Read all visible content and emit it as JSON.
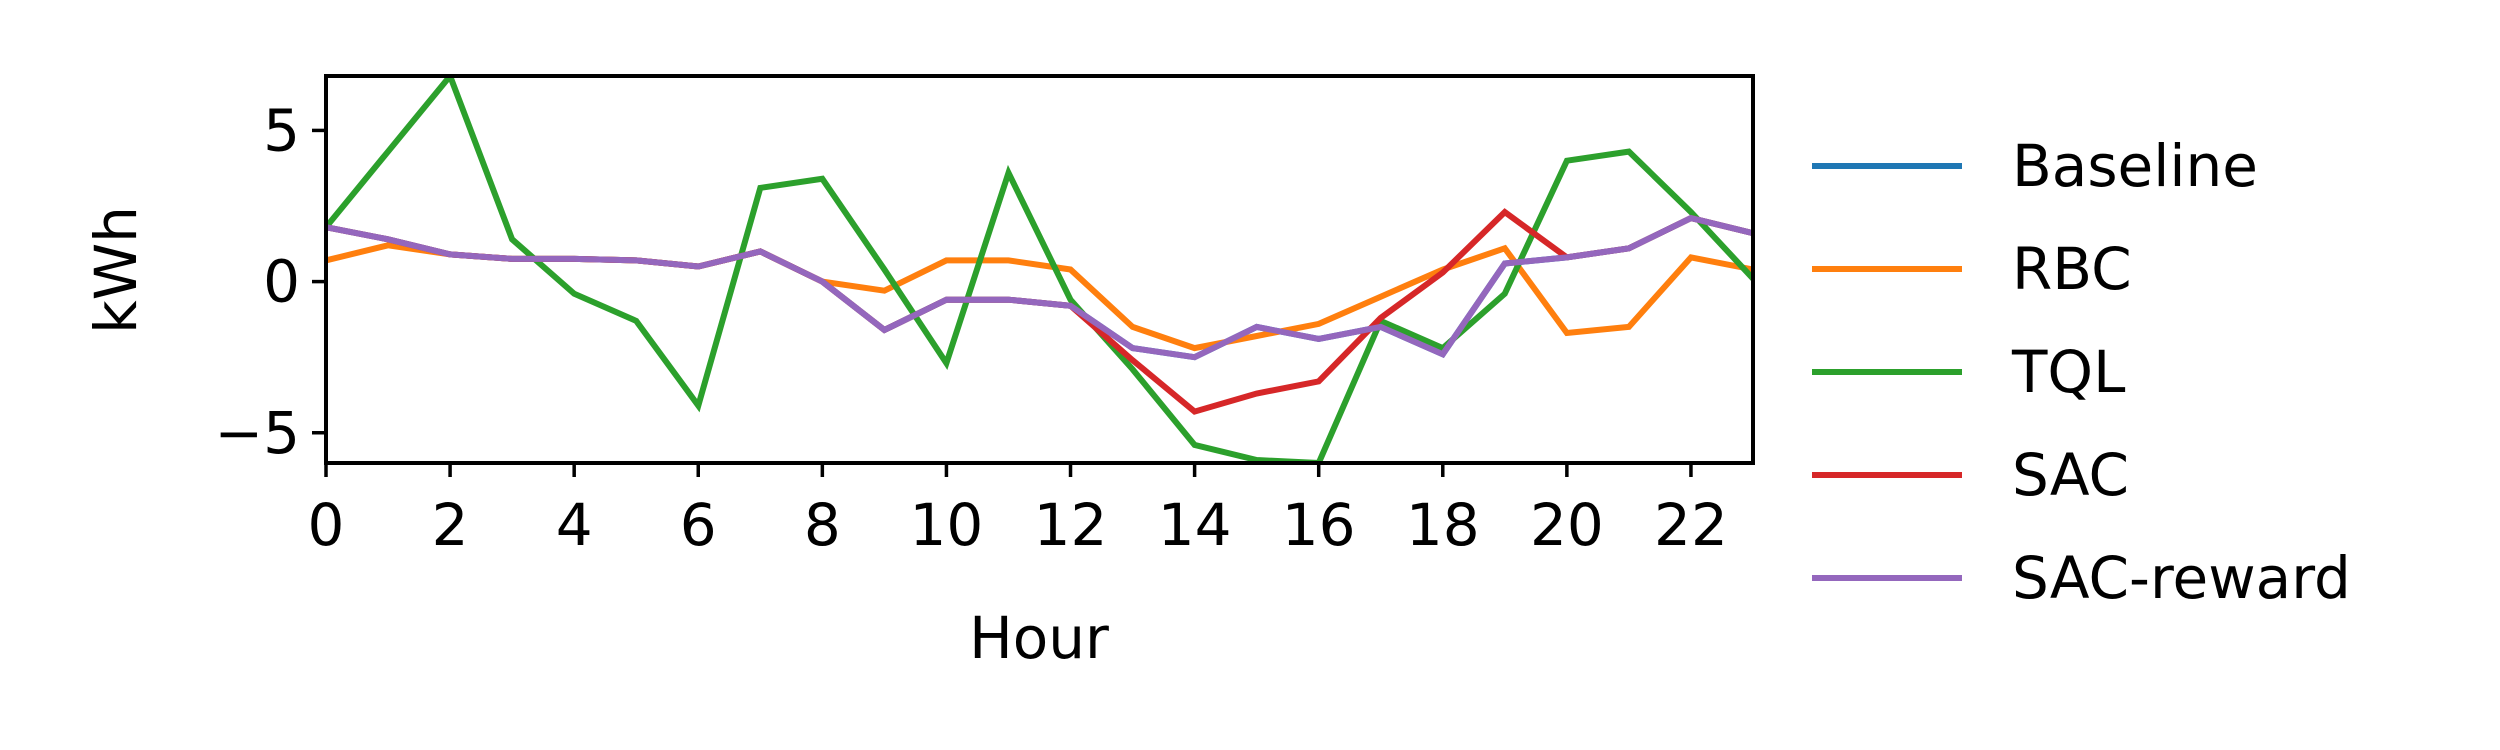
{
  "chart_data": {
    "type": "line",
    "title": "",
    "xlabel": "Hour",
    "ylabel": "kWh",
    "xlim": [
      0,
      23
    ],
    "ylim": [
      -6.0,
      6.8
    ],
    "grid": false,
    "legend_position": "outside-right",
    "xticks": [
      0,
      2,
      4,
      6,
      8,
      10,
      12,
      14,
      16,
      18,
      20,
      22
    ],
    "yticks": [
      -5,
      0,
      5
    ],
    "ytick_labels": [
      "−5",
      "0",
      "5"
    ],
    "x": [
      0,
      1,
      2,
      3,
      4,
      5,
      6,
      7,
      8,
      9,
      10,
      11,
      12,
      13,
      14,
      15,
      16,
      17,
      18,
      19,
      20,
      21,
      22,
      23
    ],
    "series": [
      {
        "name": "Baseline",
        "color": "#1f77b4",
        "values": [
          1.8,
          1.4,
          0.9,
          0.75,
          0.75,
          0.7,
          0.5,
          1.0,
          0.0,
          -1.6,
          -0.6,
          -0.6,
          -0.8,
          -2.2,
          -2.5,
          -1.5,
          -1.9,
          -1.5,
          -2.4,
          0.6,
          0.8,
          1.1,
          2.1,
          1.6
        ]
      },
      {
        "name": "RBC",
        "color": "#ff7f0e",
        "values": [
          0.7,
          1.2,
          0.9,
          0.75,
          0.75,
          0.7,
          0.5,
          1.0,
          0.0,
          -0.3,
          0.7,
          0.7,
          0.4,
          -1.5,
          -2.2,
          -1.8,
          -1.4,
          -0.5,
          0.4,
          1.1,
          -1.7,
          -1.5,
          0.8,
          0.4
        ]
      },
      {
        "name": "TQL",
        "color": "#2ca02c",
        "values": [
          1.8,
          4.3,
          6.8,
          1.4,
          -0.4,
          -1.3,
          -4.1,
          3.1,
          3.4,
          0.4,
          -2.7,
          3.6,
          -0.6,
          -2.9,
          -5.4,
          -5.9,
          -6.0,
          -1.3,
          -2.2,
          -0.4,
          4.0,
          4.3,
          2.3,
          0.1
        ]
      },
      {
        "name": "SAC",
        "color": "#d62728",
        "values": [
          1.8,
          1.4,
          0.9,
          0.75,
          0.75,
          0.7,
          0.5,
          1.0,
          0.0,
          -1.6,
          -0.6,
          -0.6,
          -0.8,
          -2.6,
          -4.3,
          -3.7,
          -3.3,
          -1.2,
          0.3,
          2.3,
          0.8,
          1.1,
          2.1,
          1.6
        ]
      },
      {
        "name": "SAC-reward",
        "color": "#9467bd",
        "values": [
          1.8,
          1.4,
          0.9,
          0.75,
          0.75,
          0.7,
          0.5,
          1.0,
          0.0,
          -1.6,
          -0.6,
          -0.6,
          -0.8,
          -2.2,
          -2.5,
          -1.5,
          -1.9,
          -1.5,
          -2.4,
          0.6,
          0.8,
          1.1,
          2.1,
          1.6
        ]
      }
    ]
  }
}
